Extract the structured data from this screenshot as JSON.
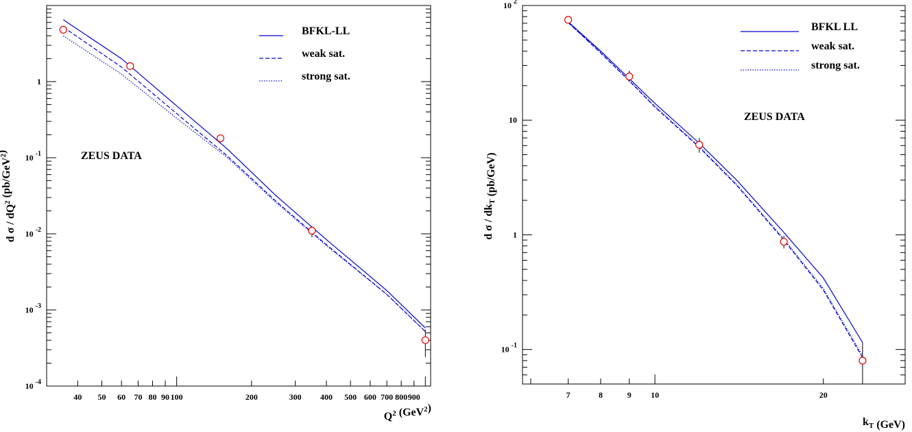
{
  "chart_data": [
    {
      "type": "line",
      "xscale": "log",
      "yscale": "log",
      "xlim": [
        30,
        1050
      ],
      "ylim": [
        0.0001,
        10
      ],
      "xlabel": "Q² (GeV²)",
      "ylabel": "d σ / dQ² (pb/GeV²)",
      "xticks": [
        {
          "v": 40,
          "t": "40"
        },
        {
          "v": 50,
          "t": "50"
        },
        {
          "v": 60,
          "t": "60"
        },
        {
          "v": 70,
          "t": "70"
        },
        {
          "v": 80,
          "t": "80"
        },
        {
          "v": 90,
          "t": "90"
        },
        {
          "v": 100,
          "t": "100"
        },
        {
          "v": 200,
          "t": "200"
        },
        {
          "v": 300,
          "t": "300"
        },
        {
          "v": 400,
          "t": "400"
        },
        {
          "v": 500,
          "t": "500"
        },
        {
          "v": 600,
          "t": "600"
        },
        {
          "v": 700,
          "t": "700"
        },
        {
          "v": 800,
          "t": "800"
        },
        {
          "v": 900,
          "t": "900"
        },
        {
          "v": 1000,
          "t": ""
        }
      ],
      "yticks": [
        {
          "v": 0.0001,
          "base": "10",
          "exp": "-4"
        },
        {
          "v": 0.001,
          "base": "10",
          "exp": "-3"
        },
        {
          "v": 0.01,
          "base": "10",
          "exp": "-2"
        },
        {
          "v": 0.1,
          "base": "10",
          "exp": "-1"
        },
        {
          "v": 1,
          "base": "1",
          "exp": ""
        }
      ],
      "legend": [
        "BFKL-LL",
        "weak sat.",
        "strong sat."
      ],
      "annotation": "ZEUS DATA",
      "series": [
        {
          "name": "BFKL-LL",
          "style": "solid",
          "x": [
            35,
            60,
            100,
            160,
            250,
            400,
            700,
            1000
          ],
          "y": [
            6.5,
            2.0,
            0.48,
            0.13,
            0.032,
            0.0084,
            0.0018,
            0.00058
          ]
        },
        {
          "name": "weak sat.",
          "style": "dashed",
          "x": [
            35,
            60,
            100,
            160,
            250,
            400,
            700,
            1000
          ],
          "y": [
            5.2,
            1.55,
            0.38,
            0.105,
            0.027,
            0.0072,
            0.0016,
            0.00052
          ]
        },
        {
          "name": "strong sat.",
          "style": "dotted",
          "x": [
            35,
            60,
            100,
            160,
            250,
            400,
            700,
            1000
          ],
          "y": [
            4.0,
            1.25,
            0.33,
            0.1,
            0.026,
            0.007,
            0.0016,
            0.00052
          ]
        }
      ],
      "data_points": [
        {
          "x": 35,
          "y": 4.8,
          "yerr": [
            4.5,
            5.2
          ]
        },
        {
          "x": 65,
          "y": 1.6,
          "yerr": [
            1.5,
            1.7
          ]
        },
        {
          "x": 150,
          "y": 0.18,
          "yerr": [
            0.17,
            0.19
          ]
        },
        {
          "x": 350,
          "y": 0.011,
          "yerr": [
            0.009,
            0.0125
          ]
        },
        {
          "x": 1000,
          "y": 0.0004,
          "yerr": [
            0.00024,
            0.00055
          ]
        }
      ]
    },
    {
      "type": "line",
      "xscale": "log",
      "yscale": "log",
      "xlim": [
        5.8,
        28
      ],
      "ylim": [
        0.05,
        100
      ],
      "xlabel": "k_T (GeV)",
      "ylabel": "d σ / dk_T (pb/GeV)",
      "xticks": [
        {
          "v": 7,
          "t": "7"
        },
        {
          "v": 8,
          "t": "8"
        },
        {
          "v": 9,
          "t": "9"
        },
        {
          "v": 10,
          "t": "10"
        },
        {
          "v": 20,
          "t": "20"
        }
      ],
      "yticks": [
        {
          "v": 0.1,
          "base": "10",
          "exp": "-1"
        },
        {
          "v": 1,
          "base": "1",
          "exp": ""
        },
        {
          "v": 10,
          "base": "10",
          "exp": ""
        },
        {
          "v": 100,
          "base": "10",
          "exp": "2"
        }
      ],
      "legend": [
        "BFKL LL",
        "weak sat.",
        "strong sat."
      ],
      "annotation": "ZEUS DATA",
      "series": [
        {
          "name": "BFKL LL",
          "style": "solid",
          "x": [
            7,
            8,
            9,
            10,
            12,
            14,
            17,
            20,
            23.5
          ],
          "y": [
            72,
            40,
            23,
            14,
            6.3,
            3.0,
            1.05,
            0.42,
            0.115
          ]
        },
        {
          "name": "weak sat.",
          "style": "dashed",
          "x": [
            7,
            8,
            9,
            10,
            12,
            14,
            17,
            20,
            23.5
          ],
          "y": [
            71,
            38.5,
            22,
            13,
            5.8,
            2.7,
            0.9,
            0.33,
            0.085
          ]
        },
        {
          "name": "strong sat.",
          "style": "dotted",
          "x": [
            7,
            8,
            9,
            10,
            12,
            14,
            17,
            20,
            23.5
          ],
          "y": [
            71,
            39,
            22.2,
            13.2,
            5.9,
            2.75,
            0.92,
            0.34,
            0.088
          ]
        }
      ],
      "data_points": [
        {
          "x": 7,
          "y": 75,
          "yerr": [
            70,
            80
          ]
        },
        {
          "x": 9,
          "y": 24,
          "yerr": [
            21.5,
            27
          ]
        },
        {
          "x": 12,
          "y": 6.1,
          "yerr": [
            5.2,
            7.0
          ]
        },
        {
          "x": 17,
          "y": 0.87,
          "yerr": [
            0.76,
            0.98
          ]
        },
        {
          "x": 23.5,
          "y": 0.08,
          "yerr": [
            0.05,
            0.115
          ]
        }
      ]
    }
  ],
  "colors": {
    "theory": "#0000d0",
    "data": "#e00000",
    "axis": "#000000"
  }
}
